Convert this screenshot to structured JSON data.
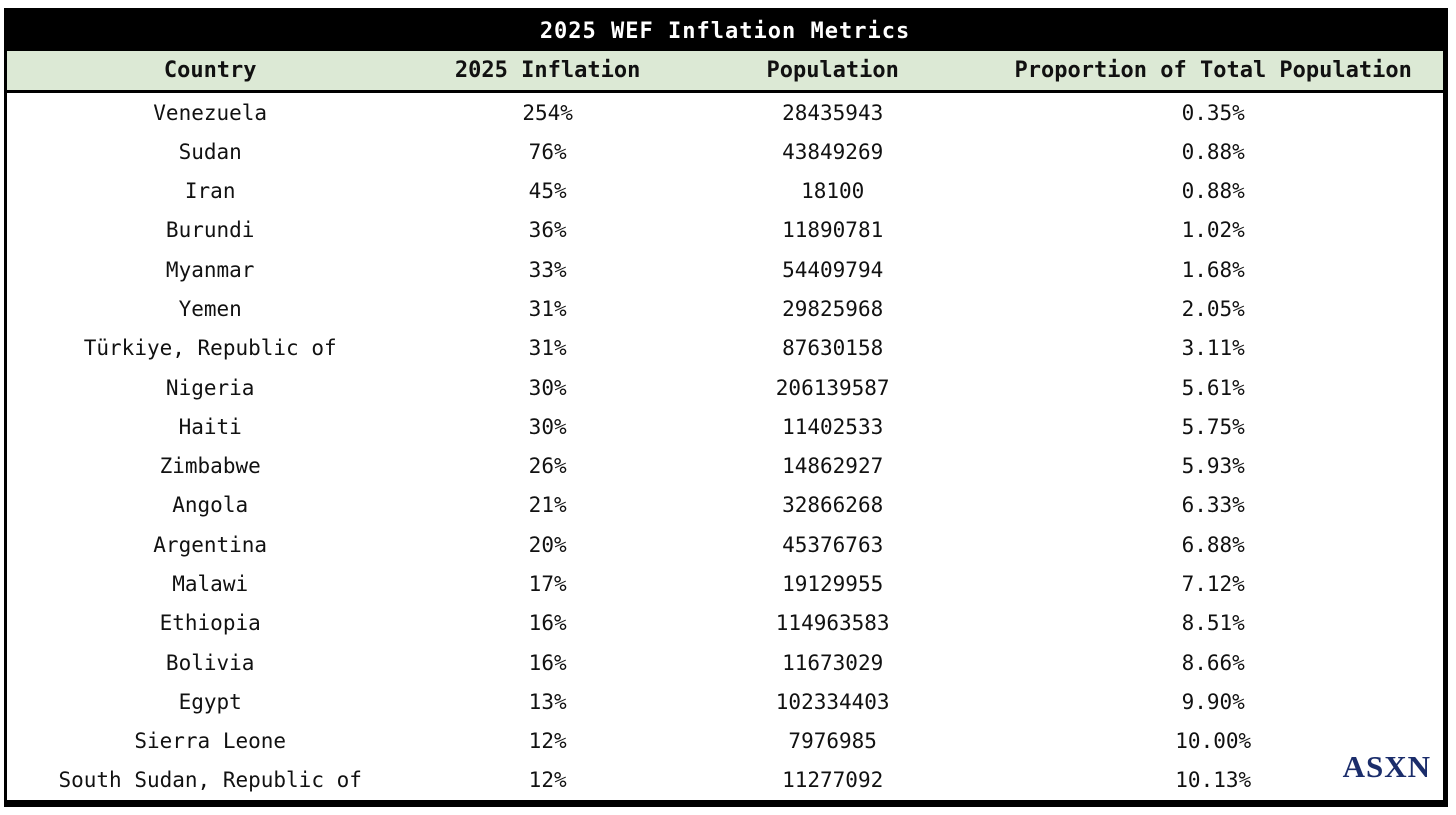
{
  "chart_data": {
    "type": "table",
    "title": "2025 WEF Inflation Metrics",
    "columns": [
      "Country",
      "2025 Inflation",
      "Population",
      "Proportion of Total Population"
    ],
    "rows": [
      [
        "Venezuela",
        "254%",
        "28435943",
        "0.35%"
      ],
      [
        "Sudan",
        "76%",
        "43849269",
        "0.88%"
      ],
      [
        "Iran",
        "45%",
        "18100",
        "0.88%"
      ],
      [
        "Burundi",
        "36%",
        "11890781",
        "1.02%"
      ],
      [
        "Myanmar",
        "33%",
        "54409794",
        "1.68%"
      ],
      [
        "Yemen",
        "31%",
        "29825968",
        "2.05%"
      ],
      [
        "Türkiye, Republic of",
        "31%",
        "87630158",
        "3.11%"
      ],
      [
        "Nigeria",
        "30%",
        "206139587",
        "5.61%"
      ],
      [
        "Haiti",
        "30%",
        "11402533",
        "5.75%"
      ],
      [
        "Zimbabwe",
        "26%",
        "14862927",
        "5.93%"
      ],
      [
        "Angola",
        "21%",
        "32866268",
        "6.33%"
      ],
      [
        "Argentina",
        "20%",
        "45376763",
        "6.88%"
      ],
      [
        "Malawi",
        "17%",
        "19129955",
        "7.12%"
      ],
      [
        "Ethiopia",
        "16%",
        "114963583",
        "8.51%"
      ],
      [
        "Bolivia",
        "16%",
        "11673029",
        "8.66%"
      ],
      [
        "Egypt",
        "13%",
        "102334403",
        "9.90%"
      ],
      [
        "Sierra Leone",
        "12%",
        "7976985",
        "10.00%"
      ],
      [
        "South Sudan, Republic of",
        "12%",
        "11277092",
        "10.13%"
      ]
    ],
    "layout": {
      "legend": "none",
      "grid": "off",
      "header_alignment": "center",
      "cell_alignment": "center"
    }
  },
  "logo": {
    "text": "ASXN"
  },
  "colors": {
    "title_bg": "#000000",
    "title_fg": "#ffffff",
    "header_bg": "#dce9d5",
    "body_bg": "#ffffff",
    "border": "#000000",
    "logo": "#1b2d6b"
  }
}
